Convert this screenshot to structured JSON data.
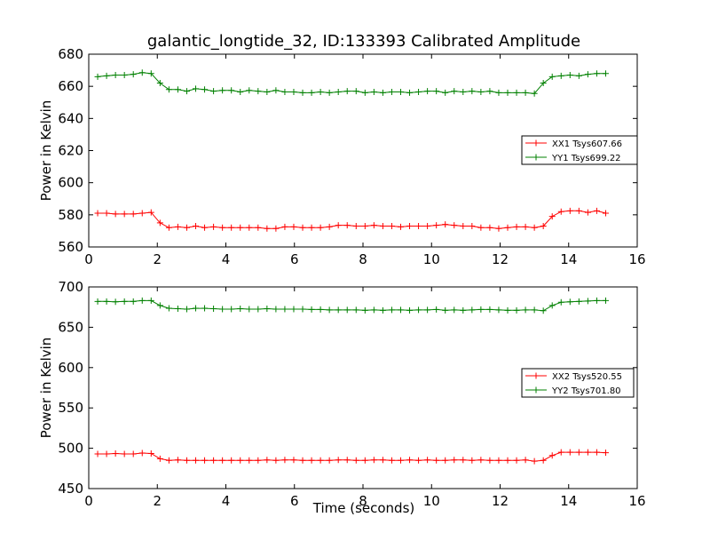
{
  "chart_data": {
    "title": "galantic_longtide_32, ID:133393 Calibrated Amplitude",
    "xlabel": "Time (seconds)",
    "panels": [
      {
        "type": "line",
        "ylabel": "Power in Kelvin",
        "xlim": [
          0,
          16
        ],
        "ylim": [
          560,
          680
        ],
        "xticks": [
          "0",
          "2",
          "4",
          "6",
          "8",
          "10",
          "12",
          "14",
          "16"
        ],
        "yticks": [
          "560",
          "580",
          "600",
          "620",
          "640",
          "660",
          "680"
        ],
        "grid": false,
        "legend_position": "right",
        "x": [
          0.26,
          0.52,
          0.78,
          1.04,
          1.3,
          1.56,
          1.82,
          2.08,
          2.34,
          2.6,
          2.86,
          3.12,
          3.38,
          3.64,
          3.9,
          4.16,
          4.42,
          4.68,
          4.94,
          5.2,
          5.46,
          5.72,
          5.98,
          6.24,
          6.5,
          6.76,
          7.02,
          7.28,
          7.54,
          7.8,
          8.06,
          8.32,
          8.58,
          8.84,
          9.1,
          9.36,
          9.62,
          9.88,
          10.14,
          10.4,
          10.66,
          10.92,
          11.18,
          11.44,
          11.7,
          11.96,
          12.22,
          12.48,
          12.74,
          13.0,
          13.26,
          13.52,
          13.78,
          14.04,
          14.3,
          14.56,
          14.82,
          15.08
        ],
        "series": [
          {
            "name": "XX1 Tsys607.66",
            "color": "#ff0000",
            "values": [
              581,
              581,
              580.5,
              580.5,
              580.5,
              581,
              581.5,
              575,
              572,
              572.5,
              572,
              573,
              572,
              572.5,
              572,
              572,
              572,
              572,
              572,
              571.5,
              571.5,
              572.5,
              572.5,
              572,
              572,
              572,
              572.5,
              573.5,
              573.5,
              573,
              573,
              573.5,
              573,
              573,
              572.5,
              573,
              573,
              573,
              573.5,
              574,
              573.5,
              573,
              573,
              572,
              572,
              571.5,
              572,
              572.5,
              572.5,
              572,
              573,
              579,
              582,
              582.5,
              582.5,
              581.5,
              582.5,
              581
            ]
          },
          {
            "name": "YY1 Tsys699.22",
            "color": "#008000",
            "values": [
              666,
              666.5,
              667,
              667,
              667.5,
              668.5,
              668,
              662,
              658,
              658,
              657,
              658.5,
              658,
              657,
              657.5,
              657.5,
              656.5,
              657.5,
              657,
              656.5,
              657.5,
              656.5,
              656.5,
              656,
              656,
              656.5,
              656,
              656.5,
              657,
              657,
              656,
              656.5,
              656,
              656.5,
              656.5,
              656,
              656.5,
              657,
              657,
              656,
              657,
              656.5,
              657,
              656.5,
              657,
              656,
              656,
              656,
              656,
              655.5,
              662,
              666,
              666.5,
              667,
              666.5,
              667.5,
              668,
              668
            ]
          }
        ]
      },
      {
        "type": "line",
        "ylabel": "Power in Kelvin",
        "xlim": [
          0,
          16
        ],
        "ylim": [
          450,
          700
        ],
        "xticks": [
          "0",
          "2",
          "4",
          "6",
          "8",
          "10",
          "12",
          "14",
          "16"
        ],
        "yticks": [
          "450",
          "500",
          "550",
          "600",
          "650",
          "700"
        ],
        "grid": false,
        "legend_position": "right",
        "x": [
          0.26,
          0.52,
          0.78,
          1.04,
          1.3,
          1.56,
          1.82,
          2.08,
          2.34,
          2.6,
          2.86,
          3.12,
          3.38,
          3.64,
          3.9,
          4.16,
          4.42,
          4.68,
          4.94,
          5.2,
          5.46,
          5.72,
          5.98,
          6.24,
          6.5,
          6.76,
          7.02,
          7.28,
          7.54,
          7.8,
          8.06,
          8.32,
          8.58,
          8.84,
          9.1,
          9.36,
          9.62,
          9.88,
          10.14,
          10.4,
          10.66,
          10.92,
          11.18,
          11.44,
          11.7,
          11.96,
          12.22,
          12.48,
          12.74,
          13.0,
          13.26,
          13.52,
          13.78,
          14.04,
          14.3,
          14.56,
          14.82,
          15.08
        ],
        "series": [
          {
            "name": "XX2 Tsys520.55",
            "color": "#ff0000",
            "values": [
              493,
              493,
              493.5,
              493,
              493,
              494,
              493.5,
              487,
              485,
              485.5,
              485,
              485,
              485,
              485,
              485,
              485,
              485,
              485,
              485,
              485.5,
              485,
              485.5,
              485.5,
              485,
              485,
              485,
              485,
              485.5,
              485.5,
              485,
              485,
              485.5,
              485.5,
              485,
              485,
              485.5,
              485,
              485.5,
              485,
              485,
              485.5,
              485.5,
              485,
              485.5,
              485,
              485,
              485,
              485,
              485.5,
              484,
              485,
              491,
              495,
              495,
              495,
              495,
              495,
              494.5
            ]
          },
          {
            "name": "YY2 Tsys701.80",
            "color": "#008000",
            "values": [
              682,
              682,
              681.5,
              682,
              682,
              683,
              683,
              677,
              673.5,
              673,
              672.5,
              673.5,
              673.5,
              673,
              672.5,
              672.5,
              673,
              672.5,
              672.5,
              673,
              672.5,
              672.5,
              672.5,
              672.5,
              672,
              672,
              671.5,
              671.5,
              671.5,
              671.5,
              671,
              671.5,
              671,
              671.5,
              671.5,
              671,
              671.5,
              671.5,
              672,
              671,
              671.5,
              671,
              671.5,
              672,
              672,
              671.5,
              671,
              671,
              671.5,
              671.5,
              670.5,
              677,
              681,
              681.5,
              682,
              682.5,
              683,
              683
            ]
          }
        ]
      }
    ]
  }
}
